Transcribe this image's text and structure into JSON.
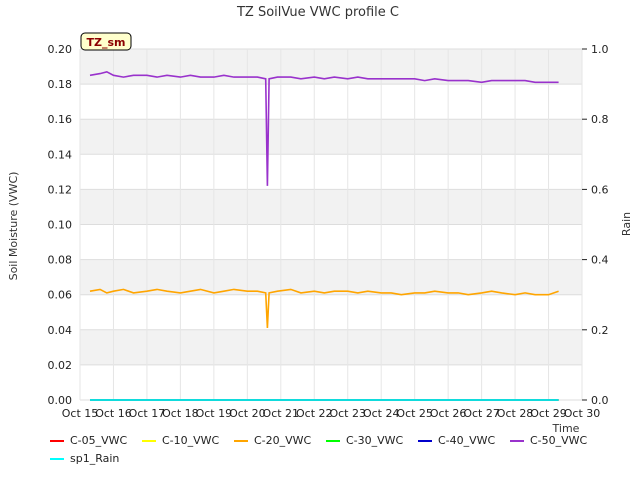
{
  "chart_data": {
    "type": "line",
    "title": "TZ SoilVue VWC profile C",
    "ylabel": "Soil Moisture (VWC)",
    "y2label": "Rain",
    "xlabel": "Time",
    "ylim": [
      0.0,
      0.2
    ],
    "y2lim": [
      0.0,
      1.0
    ],
    "xlim": [
      15,
      30
    ],
    "yticks": [
      "0.00",
      "0.02",
      "0.04",
      "0.06",
      "0.08",
      "0.10",
      "0.12",
      "0.14",
      "0.16",
      "0.18",
      "0.20"
    ],
    "y2ticks": [
      "0.0",
      "0.2",
      "0.4",
      "0.6",
      "0.8",
      "1.0"
    ],
    "xticks": [
      "Oct 15",
      "Oct 16",
      "Oct 17",
      "Oct 18",
      "Oct 19",
      "Oct 20",
      "Oct 21",
      "Oct 22",
      "Oct 23",
      "Oct 24",
      "Oct 25",
      "Oct 26",
      "Oct 27",
      "Oct 28",
      "Oct 29",
      "Oct 30"
    ],
    "annotation": "TZ_sm",
    "grid": true,
    "series": [
      {
        "name": "C-05_VWC",
        "color": "#ff0000",
        "axis": "left",
        "x": [
          15.3,
          29.3
        ],
        "values": [
          0.0,
          0.0
        ]
      },
      {
        "name": "C-10_VWC",
        "color": "#ffff00",
        "axis": "left",
        "x": [
          15.3,
          29.3
        ],
        "values": [
          0.0,
          0.0
        ]
      },
      {
        "name": "C-20_VWC",
        "color": "#ffa500",
        "axis": "left",
        "x": [
          15.3,
          15.6,
          15.8,
          16.0,
          16.3,
          16.6,
          17.0,
          17.3,
          17.6,
          18.0,
          18.3,
          18.6,
          19.0,
          19.3,
          19.6,
          20.0,
          20.3,
          20.55,
          20.6,
          20.65,
          20.9,
          21.3,
          21.6,
          22.0,
          22.3,
          22.6,
          23.0,
          23.3,
          23.6,
          24.0,
          24.3,
          24.6,
          25.0,
          25.3,
          25.6,
          26.0,
          26.3,
          26.6,
          27.0,
          27.3,
          27.6,
          28.0,
          28.3,
          28.6,
          29.0,
          29.3
        ],
        "values": [
          0.062,
          0.063,
          0.061,
          0.062,
          0.063,
          0.061,
          0.062,
          0.063,
          0.062,
          0.061,
          0.062,
          0.063,
          0.061,
          0.062,
          0.063,
          0.062,
          0.062,
          0.061,
          0.041,
          0.061,
          0.062,
          0.063,
          0.061,
          0.062,
          0.061,
          0.062,
          0.062,
          0.061,
          0.062,
          0.061,
          0.061,
          0.06,
          0.061,
          0.061,
          0.062,
          0.061,
          0.061,
          0.06,
          0.061,
          0.062,
          0.061,
          0.06,
          0.061,
          0.06,
          0.06,
          0.062
        ]
      },
      {
        "name": "C-30_VWC",
        "color": "#00ff00",
        "axis": "left",
        "x": [
          15.3,
          29.3
        ],
        "values": [
          0.0,
          0.0
        ]
      },
      {
        "name": "C-40_VWC",
        "color": "#0000cc",
        "axis": "left",
        "x": [
          15.3,
          29.3
        ],
        "values": [
          0.0,
          0.0
        ]
      },
      {
        "name": "C-50_VWC",
        "color": "#9932cc",
        "axis": "left",
        "x": [
          15.3,
          15.6,
          15.8,
          16.0,
          16.3,
          16.6,
          17.0,
          17.3,
          17.6,
          18.0,
          18.3,
          18.6,
          19.0,
          19.3,
          19.6,
          20.0,
          20.3,
          20.55,
          20.6,
          20.65,
          20.9,
          21.3,
          21.6,
          22.0,
          22.3,
          22.6,
          23.0,
          23.3,
          23.6,
          24.0,
          24.3,
          24.6,
          25.0,
          25.3,
          25.6,
          26.0,
          26.3,
          26.6,
          27.0,
          27.3,
          27.6,
          28.0,
          28.3,
          28.6,
          29.0,
          29.3
        ],
        "values": [
          0.185,
          0.186,
          0.187,
          0.185,
          0.184,
          0.185,
          0.185,
          0.184,
          0.185,
          0.184,
          0.185,
          0.184,
          0.184,
          0.185,
          0.184,
          0.184,
          0.184,
          0.183,
          0.122,
          0.183,
          0.184,
          0.184,
          0.183,
          0.184,
          0.183,
          0.184,
          0.183,
          0.184,
          0.183,
          0.183,
          0.183,
          0.183,
          0.183,
          0.182,
          0.183,
          0.182,
          0.182,
          0.182,
          0.181,
          0.182,
          0.182,
          0.182,
          0.182,
          0.181,
          0.181,
          0.181
        ]
      },
      {
        "name": "sp1_Rain",
        "color": "#00ffff",
        "axis": "right",
        "x": [
          15.3,
          29.3
        ],
        "values": [
          0.0,
          0.0
        ]
      }
    ]
  }
}
